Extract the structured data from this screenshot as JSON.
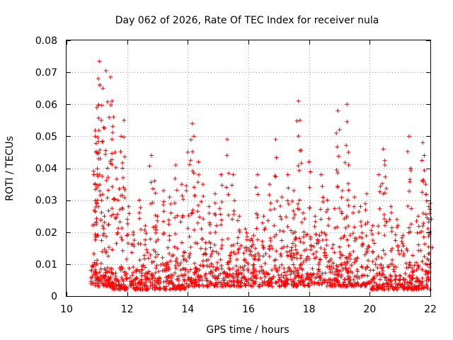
{
  "chart_data": {
    "type": "scatter",
    "title": "Day 062 of 2026, Rate Of TEC Index for receiver nula",
    "xlabel": "GPS time / hours",
    "ylabel": "ROTI / TECUs",
    "xlim": [
      10,
      22
    ],
    "ylim": [
      0,
      0.08
    ],
    "grid": true,
    "marker": "+",
    "marker_color": "#ff0000",
    "x_ticks": [
      10,
      12,
      14,
      16,
      18,
      20,
      22
    ],
    "x_tick_labels": [
      "10",
      "12",
      "14",
      "16",
      "18",
      "20",
      "22"
    ],
    "y_ticks": [
      0,
      0.01,
      0.02,
      0.03,
      0.04,
      0.05,
      0.06,
      0.07,
      0.08
    ],
    "y_tick_labels": [
      "0",
      "0.01",
      "0.02",
      "0.03",
      "0.04",
      "0.05",
      "0.06",
      "0.07",
      "0.08"
    ],
    "series": [
      {
        "name": "ROTI",
        "points": [
          [
            10.85,
            0.006
          ],
          [
            10.9,
            0.038
          ],
          [
            10.95,
            0.05
          ],
          [
            10.98,
            0.045
          ],
          [
            11.0,
            0.059
          ],
          [
            11.02,
            0.03
          ],
          [
            11.05,
            0.068
          ],
          [
            11.08,
            0.0735
          ],
          [
            11.1,
            0.066
          ],
          [
            11.15,
            0.055
          ],
          [
            11.2,
            0.065
          ],
          [
            11.25,
            0.025
          ],
          [
            11.3,
            0.0705
          ],
          [
            11.35,
            0.04
          ],
          [
            11.45,
            0.0685
          ],
          [
            11.5,
            0.061
          ],
          [
            11.55,
            0.056
          ],
          [
            11.6,
            0.045
          ],
          [
            11.7,
            0.03
          ],
          [
            11.8,
            0.05
          ],
          [
            11.85,
            0.04
          ],
          [
            11.9,
            0.055
          ],
          [
            12.05,
            0.028
          ],
          [
            12.2,
            0.02
          ],
          [
            12.4,
            0.03
          ],
          [
            12.6,
            0.022
          ],
          [
            12.8,
            0.044
          ],
          [
            12.9,
            0.036
          ],
          [
            13.0,
            0.025
          ],
          [
            13.2,
            0.033
          ],
          [
            13.4,
            0.031
          ],
          [
            13.6,
            0.041
          ],
          [
            13.8,
            0.035
          ],
          [
            14.0,
            0.045
          ],
          [
            14.15,
            0.054
          ],
          [
            14.2,
            0.05
          ],
          [
            14.35,
            0.042
          ],
          [
            14.5,
            0.035
          ],
          [
            14.7,
            0.028
          ],
          [
            14.9,
            0.032
          ],
          [
            15.1,
            0.038
          ],
          [
            15.3,
            0.049
          ],
          [
            15.5,
            0.038
          ],
          [
            15.7,
            0.025
          ],
          [
            15.9,
            0.021
          ],
          [
            16.1,
            0.018
          ],
          [
            16.3,
            0.038
          ],
          [
            16.5,
            0.025
          ],
          [
            16.7,
            0.035
          ],
          [
            16.9,
            0.049
          ],
          [
            17.1,
            0.031
          ],
          [
            17.3,
            0.038
          ],
          [
            17.5,
            0.033
          ],
          [
            17.65,
            0.061
          ],
          [
            17.7,
            0.055
          ],
          [
            17.8,
            0.026
          ],
          [
            18.0,
            0.042
          ],
          [
            18.2,
            0.025
          ],
          [
            18.4,
            0.038
          ],
          [
            18.6,
            0.03
          ],
          [
            18.9,
            0.051
          ],
          [
            18.95,
            0.058
          ],
          [
            19.1,
            0.033
          ],
          [
            19.25,
            0.06
          ],
          [
            19.3,
            0.045
          ],
          [
            19.5,
            0.031
          ],
          [
            19.7,
            0.028
          ],
          [
            19.9,
            0.032
          ],
          [
            20.1,
            0.022
          ],
          [
            20.3,
            0.038
          ],
          [
            20.45,
            0.046
          ],
          [
            20.5,
            0.041
          ],
          [
            20.7,
            0.028
          ],
          [
            20.9,
            0.024
          ],
          [
            21.1,
            0.019
          ],
          [
            21.3,
            0.05
          ],
          [
            21.35,
            0.04
          ],
          [
            21.6,
            0.025
          ],
          [
            21.75,
            0.048
          ],
          [
            21.8,
            0.044
          ],
          [
            21.85,
            0.035
          ],
          [
            21.95,
            0.028
          ],
          [
            22.0,
            0.029
          ]
        ],
        "baseline_envelope": [
          {
            "x_start": 10.8,
            "x_end": 11.5,
            "y_min": 0.003,
            "y_max": 0.015
          },
          {
            "x_start": 11.5,
            "x_end": 12.5,
            "y_min": 0.002,
            "y_max": 0.012
          },
          {
            "x_start": 12.5,
            "x_end": 14.0,
            "y_min": 0.002,
            "y_max": 0.018
          },
          {
            "x_start": 14.0,
            "x_end": 16.0,
            "y_min": 0.003,
            "y_max": 0.02
          },
          {
            "x_start": 16.0,
            "x_end": 18.0,
            "y_min": 0.003,
            "y_max": 0.022
          },
          {
            "x_start": 18.0,
            "x_end": 20.0,
            "y_min": 0.003,
            "y_max": 0.022
          },
          {
            "x_start": 20.0,
            "x_end": 22.0,
            "y_min": 0.002,
            "y_max": 0.016
          }
        ]
      }
    ]
  }
}
